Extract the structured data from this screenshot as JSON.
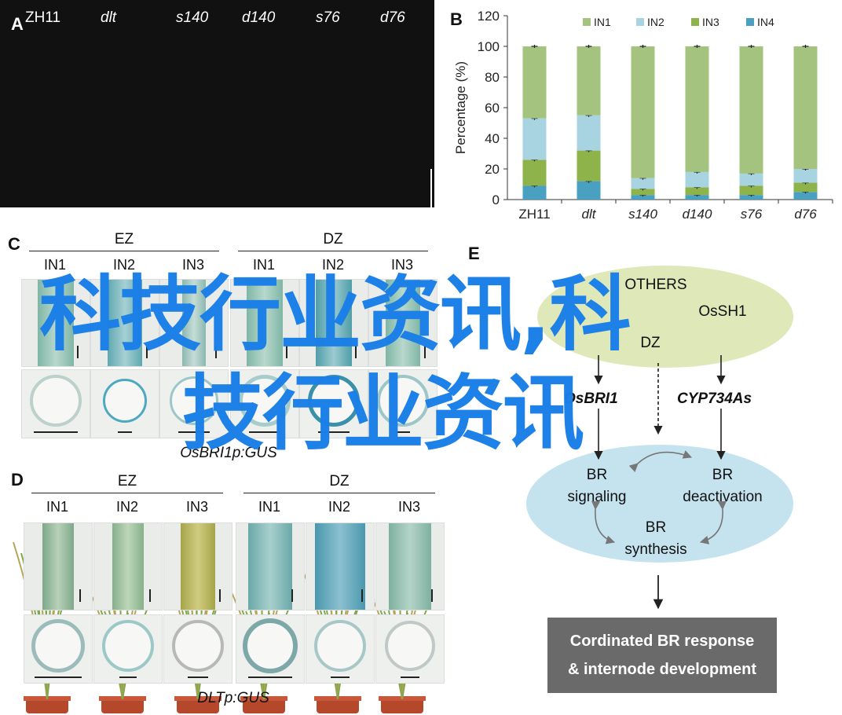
{
  "panels": {
    "a": "A",
    "b": "B",
    "c": "C",
    "d": "D",
    "e": "E"
  },
  "panelA": {
    "labels": [
      "ZH11",
      "dlt",
      "s140",
      "d140",
      "s76",
      "d76"
    ]
  },
  "chart_data": {
    "type": "bar",
    "stacked": true,
    "categories": [
      "ZH11",
      "dlt",
      "s140",
      "d140",
      "s76",
      "d76"
    ],
    "ylabel": "Percentage (%)",
    "xlabel": "",
    "ylim": [
      0,
      120
    ],
    "yticks": [
      "0",
      "20",
      "40",
      "60",
      "80",
      "100",
      "120"
    ],
    "legend_position": "top",
    "series": [
      {
        "name": "IN4",
        "color": "#4aa0c0",
        "values": [
          9,
          12,
          3,
          3,
          3,
          5
        ]
      },
      {
        "name": "IN3",
        "color": "#8db34a",
        "values": [
          17,
          20,
          4,
          5,
          6,
          6
        ]
      },
      {
        "name": "IN2",
        "color": "#a8d4e2",
        "values": [
          27,
          23,
          7,
          10,
          8,
          9
        ]
      },
      {
        "name": "IN1",
        "color": "#a3c37e",
        "values": [
          47,
          45,
          86,
          82,
          83,
          80
        ]
      }
    ]
  },
  "panelC": {
    "groups": [
      "EZ",
      "DZ"
    ],
    "cols": [
      "IN1",
      "IN2",
      "IN3",
      "IN1",
      "IN2",
      "IN3"
    ],
    "caption": "OsBRI1p:GUS"
  },
  "panelD": {
    "groups": [
      "EZ",
      "DZ"
    ],
    "cols": [
      "IN1",
      "IN2",
      "IN3",
      "IN1",
      "IN2",
      "IN3"
    ],
    "caption": "DLTp:GUS"
  },
  "panelE": {
    "ellipse_top": [
      "OTHERS",
      "OsSH1",
      "DZ"
    ],
    "left_gene": "OsBRI1",
    "right_gene": "CYP734As",
    "br_signaling": [
      "BR",
      "signaling"
    ],
    "br_deactivation": [
      "BR",
      "deactivation"
    ],
    "br_synthesis": [
      "BR",
      "synthesis"
    ],
    "output": [
      "Cordinated BR response",
      "& internode development"
    ]
  },
  "watermark": {
    "line1": "科技行业资讯,科",
    "line2": "技行业资讯"
  }
}
